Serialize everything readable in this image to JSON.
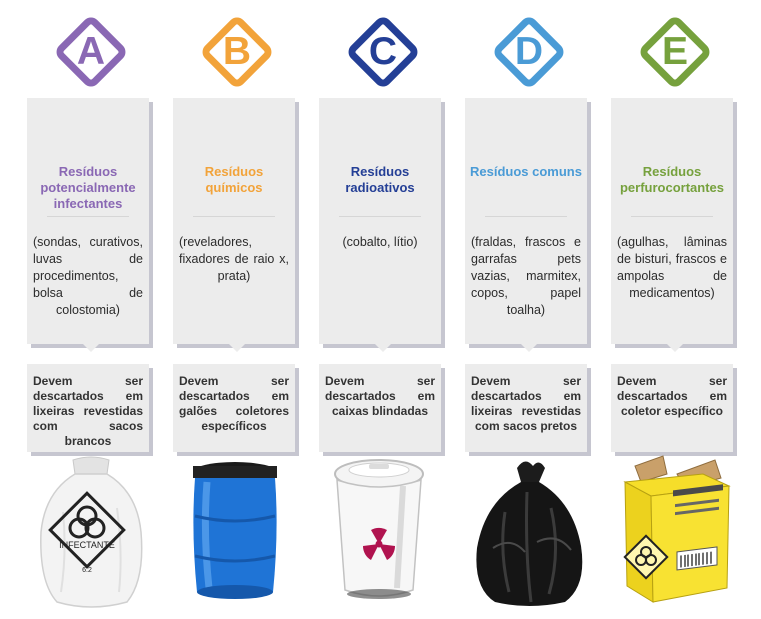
{
  "categories": [
    {
      "letter": "A",
      "color": "#8a68b4",
      "title": "Resíduos potencialmente infectantes",
      "examples": "(sondas, curativos, luvas de procedimentos, bolsa de colostomia)",
      "disposal": "Devem ser descartados em lixeiras revestidas com sacos brancos",
      "image_label": "INFECTANTE",
      "image_subtext": "6.2",
      "image_icon": "white-infectant-bag-icon"
    },
    {
      "letter": "B",
      "color": "#f2a33a",
      "title": "Resíduos químicos",
      "examples": "(reveladores, fixadores de raio x, prata)",
      "disposal": "Devem ser descartados em galões coletores específicos",
      "image_icon": "blue-drum-icon"
    },
    {
      "letter": "C",
      "color": "#243f96",
      "title": "Resíduos radioativos",
      "examples": "(cobalto, lítio)",
      "disposal": "Devem ser descartados em caixas blindadas",
      "image_icon": "radioactive-bin-icon"
    },
    {
      "letter": "D",
      "color": "#4a9bd6",
      "title": "Resíduos comuns",
      "examples": "(fraldas, frascos e garrafas pets vazias, marmitex, copos, papel toalha)",
      "disposal": "Devem ser descartados em lixeiras revestidas com sacos pretos",
      "image_icon": "black-trash-bag-icon"
    },
    {
      "letter": "E",
      "color": "#76a13d",
      "title": "Resíduos perfurocortantes",
      "examples": "(agulhas, lâminas de bisturi, frascos e ampolas de medicamentos)",
      "disposal": "Devem ser descartados em coletor específico",
      "image_icon": "sharps-box-icon"
    }
  ]
}
